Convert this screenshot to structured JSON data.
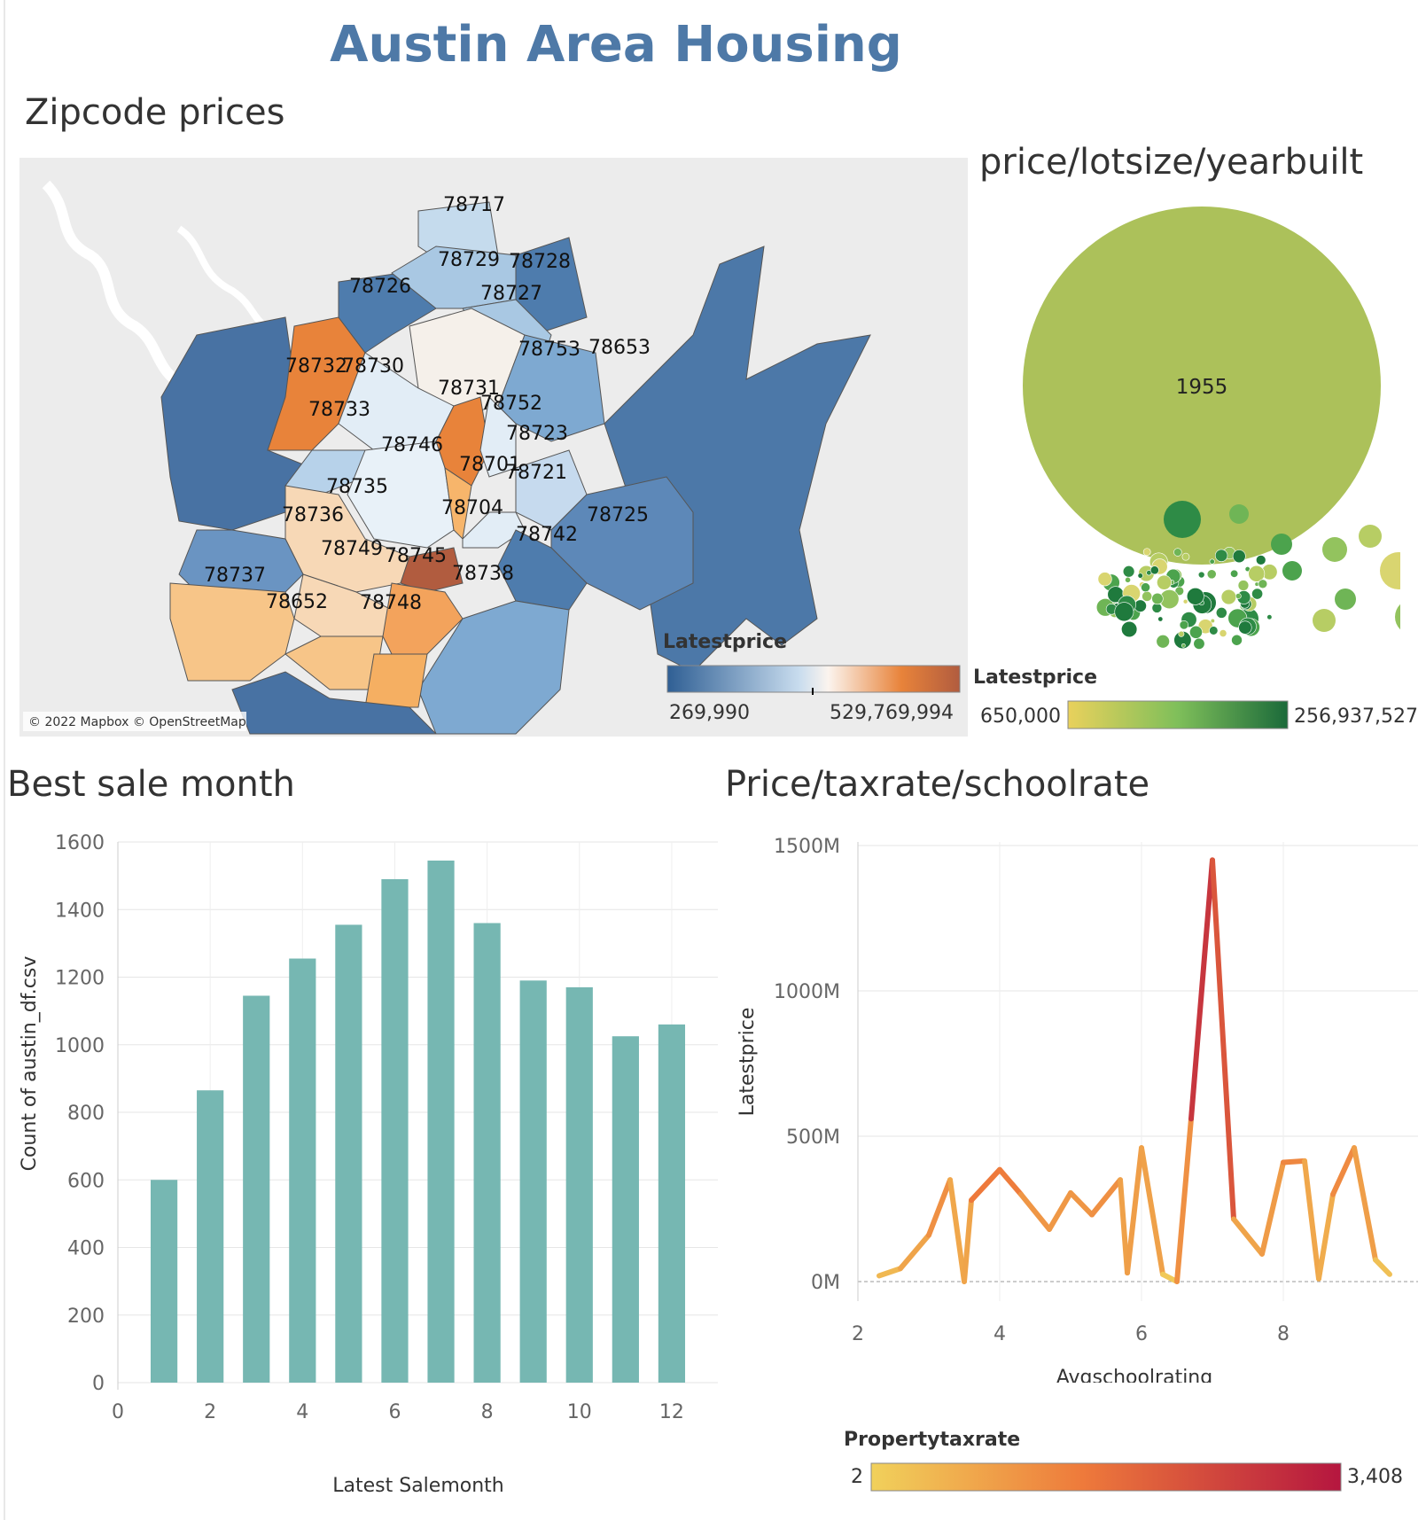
{
  "dashboard_title": "Austin Area Housing",
  "sections": {
    "map_title": "Zipcode prices",
    "bubble_title": "price/lotsize/yearbuilt",
    "bar_title": "Best sale month",
    "line_title": "Price/taxrate/schoolrate"
  },
  "map": {
    "attribution": "© 2022 Mapbox © OpenStreetMap",
    "legend_title": "Latestprice",
    "legend_min": "269,990",
    "legend_max": "529,769,994",
    "zip_labels": [
      "78717",
      "78729",
      "78728",
      "78726",
      "78727",
      "78732",
      "78730",
      "78753",
      "78653",
      "78731",
      "78752",
      "78733",
      "78723",
      "78746",
      "78701",
      "78721",
      "78735",
      "78704",
      "78736",
      "78725",
      "78742",
      "78749",
      "78745",
      "78737",
      "78738",
      "78652",
      "78748"
    ],
    "colors": {
      "low": "#2f5f94",
      "mid": "#f6f3ef",
      "high": "#b15c3f"
    }
  },
  "bubble": {
    "center_label": "1955",
    "legend_title": "Latestprice",
    "legend_min": "650,000",
    "legend_max": "256,937,527",
    "colors": {
      "low": "#e9d15c",
      "mid": "#8cbf4f",
      "high": "#1b6a3a"
    }
  },
  "chart_data": [
    {
      "type": "bar",
      "title": "Best sale month",
      "xlabel": "Latest Salemonth",
      "ylabel": "Count of austin_df.csv",
      "x": [
        1,
        2,
        3,
        4,
        5,
        6,
        7,
        8,
        9,
        10,
        11,
        12
      ],
      "values": [
        600,
        865,
        1145,
        1255,
        1355,
        1490,
        1545,
        1360,
        1190,
        1170,
        1025,
        1060
      ],
      "xlim": [
        0,
        13
      ],
      "ylim": [
        0,
        1600
      ],
      "xticks": [
        "0",
        "2",
        "4",
        "6",
        "8",
        "10",
        "12"
      ],
      "yticks": [
        "0",
        "200",
        "400",
        "600",
        "800",
        "1000",
        "1200",
        "1400",
        "1600"
      ],
      "color": "#76b7b2",
      "grid": true
    },
    {
      "type": "line",
      "title": "Price/taxrate/schoolrate",
      "xlabel": "Avgschoolrating",
      "ylabel": "Latestprice",
      "x": [
        2.3,
        2.6,
        3.0,
        3.3,
        3.5,
        3.6,
        4.0,
        4.3,
        4.7,
        5.0,
        5.3,
        5.7,
        5.8,
        6.0,
        6.3,
        6.5,
        6.7,
        7.0,
        7.3,
        7.7,
        8.0,
        8.3,
        8.5,
        8.7,
        9.0,
        9.3,
        9.5
      ],
      "y": [
        20,
        45,
        160,
        350,
        0,
        280,
        385,
        300,
        180,
        305,
        230,
        350,
        30,
        460,
        25,
        0,
        560,
        1450,
        215,
        95,
        410,
        415,
        10,
        300,
        460,
        75,
        25
      ],
      "color_values": [
        300,
        600,
        1000,
        1300,
        200,
        1400,
        1700,
        1300,
        800,
        1200,
        900,
        1400,
        300,
        1500,
        200,
        100,
        2200,
        3408,
        1000,
        600,
        1300,
        1300,
        200,
        1100,
        1400,
        400,
        200
      ],
      "xlim": [
        2,
        9.9
      ],
      "ylim": [
        0,
        1500
      ],
      "xticks": [
        "2",
        "4",
        "6",
        "8"
      ],
      "yticks": [
        "0M",
        "500M",
        "1000M",
        "1500M"
      ],
      "grid": true
    }
  ],
  "line_legend": {
    "title": "Propertytaxrate",
    "min": "2",
    "max": "3,408",
    "colors": {
      "low": "#f1d15b",
      "mid": "#ee7a3b",
      "high": "#b5163f"
    }
  }
}
